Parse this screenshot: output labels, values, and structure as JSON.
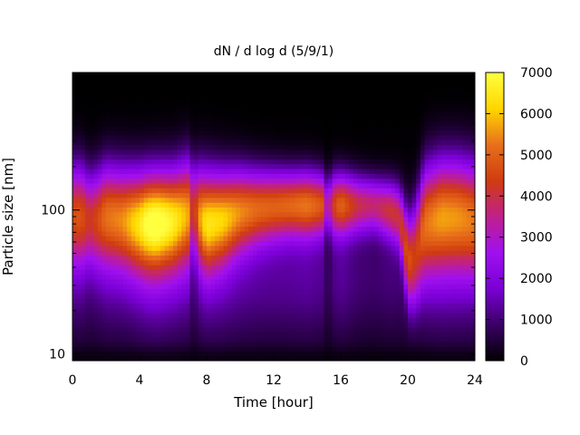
{
  "chart_data": {
    "type": "heatmap",
    "title": "dN / d log d (5/9/1)",
    "xlabel": "Time [hour]",
    "ylabel": "Particle size [nm]",
    "x_range": [
      0,
      24
    ],
    "x_ticks": [
      0,
      4,
      8,
      12,
      16,
      20,
      24
    ],
    "x_tick_labels": [
      "0",
      "4",
      "8",
      "12",
      "16",
      "20",
      "24"
    ],
    "y_scale": "log",
    "y_range": [
      9,
      900
    ],
    "y_ticks": [
      10,
      100
    ],
    "y_tick_labels": [
      "10",
      "100"
    ],
    "colorbar": {
      "range": [
        0,
        7000
      ],
      "ticks": [
        0,
        1000,
        2000,
        3000,
        4000,
        5000,
        6000,
        7000
      ],
      "tick_labels": [
        "0",
        "1000",
        "2000",
        "3000",
        "4000",
        "5000",
        "6000",
        "7000"
      ],
      "palette": [
        "#000000",
        "#3a0065",
        "#7a00d6",
        "#a010f0",
        "#c0208a",
        "#d03c10",
        "#e8701a",
        "#ffd600",
        "#ffff40"
      ]
    },
    "time_hours": [
      0,
      0.5,
      1,
      1.5,
      2,
      3,
      4,
      4.5,
      5,
      6,
      7,
      7.2,
      7.5,
      8,
      9,
      10,
      11,
      12,
      13,
      14,
      15,
      15.2,
      15.5,
      16,
      17,
      18,
      19,
      19.5,
      20,
      20.5,
      21,
      22,
      23,
      24
    ],
    "profiles": [
      {
        "peak_nm": 95,
        "width": 0.24,
        "peak_value": 4100
      },
      {
        "peak_nm": 95,
        "width": 0.24,
        "peak_value": 4200
      },
      {
        "peak_nm": 90,
        "width": 0.22,
        "peak_value": 3600
      },
      {
        "peak_nm": 90,
        "width": 0.23,
        "peak_value": 4000
      },
      {
        "peak_nm": 95,
        "width": 0.24,
        "peak_value": 4600
      },
      {
        "peak_nm": 90,
        "width": 0.24,
        "peak_value": 4800
      },
      {
        "peak_nm": 85,
        "width": 0.24,
        "peak_value": 5600
      },
      {
        "peak_nm": 85,
        "width": 0.24,
        "peak_value": 6200
      },
      {
        "peak_nm": 85,
        "width": 0.24,
        "peak_value": 6400
      },
      {
        "peak_nm": 88,
        "width": 0.24,
        "peak_value": 5800
      },
      {
        "peak_nm": 100,
        "width": 0.25,
        "peak_value": 5000
      },
      {
        "peak_nm": 110,
        "width": 0.2,
        "peak_value": 3000
      },
      {
        "peak_nm": 95,
        "width": 0.23,
        "peak_value": 4800
      },
      {
        "peak_nm": 85,
        "width": 0.24,
        "peak_value": 5600
      },
      {
        "peak_nm": 90,
        "width": 0.22,
        "peak_value": 5400
      },
      {
        "peak_nm": 100,
        "width": 0.2,
        "peak_value": 4900
      },
      {
        "peak_nm": 105,
        "width": 0.18,
        "peak_value": 4600
      },
      {
        "peak_nm": 108,
        "width": 0.17,
        "peak_value": 4500
      },
      {
        "peak_nm": 110,
        "width": 0.16,
        "peak_value": 4600
      },
      {
        "peak_nm": 110,
        "width": 0.16,
        "peak_value": 4800
      },
      {
        "peak_nm": 110,
        "width": 0.15,
        "peak_value": 4300
      },
      {
        "peak_nm": 110,
        "width": 0.12,
        "peak_value": 2000
      },
      {
        "peak_nm": 110,
        "width": 0.15,
        "peak_value": 3900
      },
      {
        "peak_nm": 110,
        "width": 0.15,
        "peak_value": 4600
      },
      {
        "peak_nm": 110,
        "width": 0.14,
        "peak_value": 3600
      },
      {
        "peak_nm": 110,
        "width": 0.13,
        "peak_value": 3300
      },
      {
        "peak_nm": 100,
        "width": 0.14,
        "peak_value": 3700
      },
      {
        "peak_nm": 90,
        "width": 0.15,
        "peak_value": 3500
      },
      {
        "peak_nm": 45,
        "width": 0.2,
        "peak_value": 3800
      },
      {
        "peak_nm": 50,
        "width": 0.25,
        "peak_value": 3400
      },
      {
        "peak_nm": 85,
        "width": 0.27,
        "peak_value": 4500
      },
      {
        "peak_nm": 95,
        "width": 0.27,
        "peak_value": 5000
      },
      {
        "peak_nm": 95,
        "width": 0.27,
        "peak_value": 4900
      },
      {
        "peak_nm": 90,
        "width": 0.27,
        "peak_value": 4600
      }
    ]
  }
}
